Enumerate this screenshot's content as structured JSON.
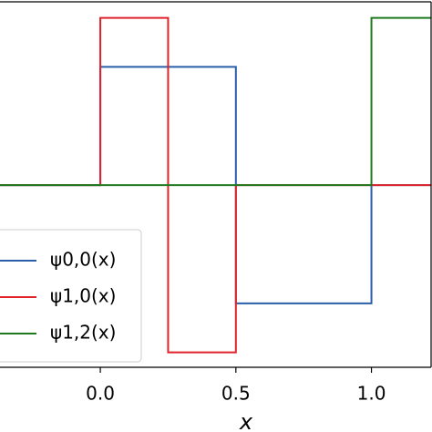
{
  "chart_data": {
    "type": "line",
    "x": [
      -0.4,
      0,
      0,
      0.25,
      0.25,
      0.5,
      0.5,
      1,
      1,
      1.25
    ],
    "series": [
      {
        "name": "ψ0,0(x)",
        "color": "#2a5ea8",
        "values": [
          0,
          0,
          1,
          1,
          1,
          1,
          -1,
          -1,
          0,
          0
        ]
      },
      {
        "name": "ψ1,0(x)",
        "color": "#e0232b",
        "values": [
          0,
          0,
          1.414,
          1.414,
          -1.414,
          -1.414,
          0,
          0,
          0,
          0
        ]
      },
      {
        "name": "ψ1,2(x)",
        "color": "#1f7a1f",
        "values": [
          0,
          0,
          0,
          0,
          0,
          0,
          0,
          0,
          1.414,
          1.414
        ]
      }
    ],
    "xlabel": "x",
    "xlim": [
      -0.37,
      1.22
    ],
    "ylim": [
      -1.54,
      1.55
    ],
    "xticks": [
      {
        "value": 0,
        "label": "0.0"
      },
      {
        "value": 0.5,
        "label": "0.5"
      },
      {
        "value": 1,
        "label": "1.0"
      }
    ],
    "legend": "lower left"
  }
}
